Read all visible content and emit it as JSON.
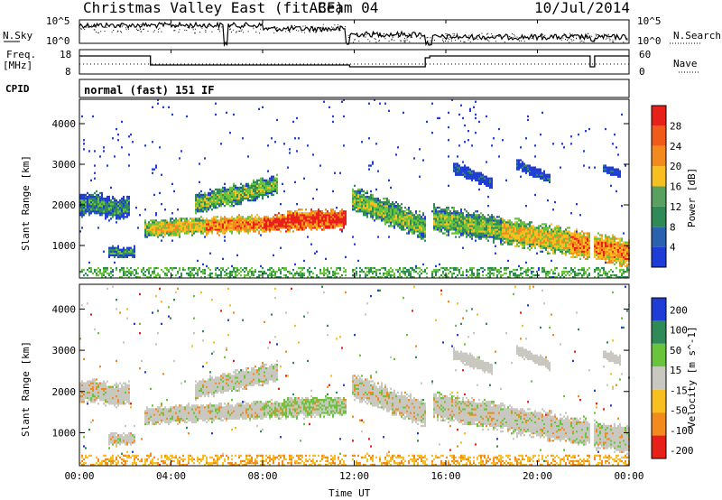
{
  "header": {
    "title": "Christmas Valley East (fitACF)",
    "beam": "Beam 04",
    "date": "10/Jul/2014"
  },
  "top_panel": {
    "left_label": "N.Sky",
    "right_label": "N.Search",
    "left_ticks": [
      "10^5",
      "10^0"
    ],
    "right_ticks": [
      "10^5",
      "10^0"
    ]
  },
  "freq_panel": {
    "left_label_1": "Freq.",
    "left_label_2": "[MHz]",
    "right_label": "Nave",
    "left_ticks": [
      "18",
      "8"
    ],
    "right_ticks": [
      "60",
      "0"
    ]
  },
  "cpid": {
    "label": "CPID",
    "value": "normal (fast) 151 IF"
  },
  "colors": {
    "red": "#e8201a",
    "orange": "#f28a1e",
    "yellow": "#f7c020",
    "green": "#69c43b",
    "teal": "#2e8b57",
    "blue": "#1f3dd6",
    "gray": "#c8c8c0"
  },
  "chart_data": [
    {
      "type": "heatmap",
      "name": "power",
      "ylabel": "Slant Range [km]",
      "ylim": [
        200,
        4600
      ],
      "yticks": [
        1000,
        2000,
        3000,
        4000
      ],
      "colorbar": {
        "label": "Power [dB]",
        "ticks": [
          4,
          8,
          12,
          16,
          20,
          24,
          28
        ],
        "range": [
          0,
          32
        ]
      }
    },
    {
      "type": "heatmap",
      "name": "velocity",
      "ylabel": "Slant Range [km]",
      "ylim": [
        200,
        4600
      ],
      "yticks": [
        1000,
        2000,
        3000,
        4000
      ],
      "colorbar": {
        "label": "Velocity [m s^-1]",
        "ticks": [
          200,
          100,
          50,
          15,
          -15,
          -50,
          -100,
          -200
        ]
      }
    }
  ],
  "xaxis": {
    "label": "Time UT",
    "ticks": [
      "00:00",
      "04:00",
      "08:00",
      "12:00",
      "16:00",
      "20:00",
      "00:00"
    ],
    "range_hours": [
      0,
      24
    ]
  }
}
